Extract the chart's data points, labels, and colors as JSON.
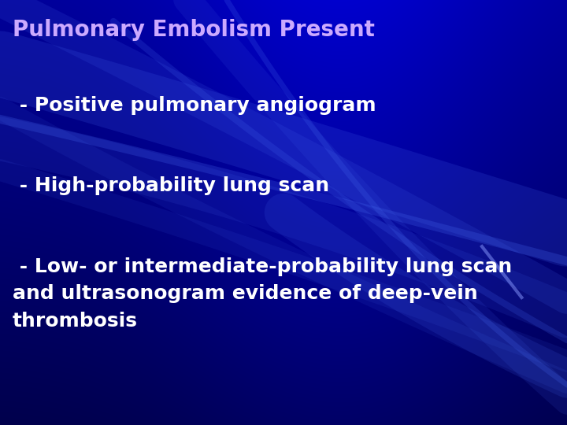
{
  "title": "Pulmonary Embolism Present",
  "title_color": "#ccaaff",
  "title_fontsize": 20,
  "bullet1": " - Positive pulmonary angiogram",
  "bullet2": " - High-probability lung scan",
  "bullet3": " - Low- or intermediate-probability lung scan\nand ultrasonogram evidence of deep-vein\nthrombosis",
  "bullet_color": "#ffffff",
  "bullet_fontsize": 18,
  "bg_base": "#0000bb",
  "figsize": [
    7.2,
    5.4
  ],
  "dpi": 100
}
